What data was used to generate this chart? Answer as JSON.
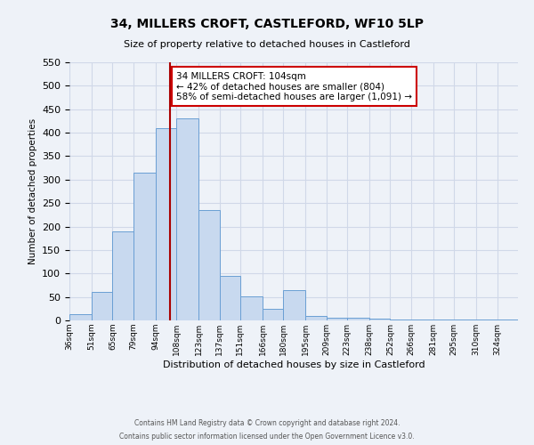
{
  "title": "34, MILLERS CROFT, CASTLEFORD, WF10 5LP",
  "subtitle": "Size of property relative to detached houses in Castleford",
  "xlabel": "Distribution of detached houses by size in Castleford",
  "ylabel": "Number of detached properties",
  "bin_labels": [
    "36sqm",
    "51sqm",
    "65sqm",
    "79sqm",
    "94sqm",
    "108sqm",
    "123sqm",
    "137sqm",
    "151sqm",
    "166sqm",
    "180sqm",
    "195sqm",
    "209sqm",
    "223sqm",
    "238sqm",
    "252sqm",
    "266sqm",
    "281sqm",
    "295sqm",
    "310sqm",
    "324sqm"
  ],
  "bin_edges": [
    36,
    51,
    65,
    79,
    94,
    108,
    123,
    137,
    151,
    166,
    180,
    195,
    209,
    223,
    238,
    252,
    266,
    281,
    295,
    310,
    324,
    338
  ],
  "counts": [
    13,
    60,
    190,
    315,
    410,
    430,
    235,
    95,
    52,
    25,
    65,
    10,
    5,
    5,
    3,
    2,
    2,
    2,
    2,
    1,
    2
  ],
  "vline_x": 104,
  "bar_facecolor": "#c8d9ef",
  "bar_edgecolor": "#6a9fd4",
  "vline_color": "#aa0000",
  "annotation_text": "34 MILLERS CROFT: 104sqm\n← 42% of detached houses are smaller (804)\n58% of semi-detached houses are larger (1,091) →",
  "annotation_box_edgecolor": "#cc0000",
  "annotation_box_facecolor": "#ffffff",
  "ylim": [
    0,
    550
  ],
  "grid_color": "#d0d8e8",
  "background_color": "#eef2f8",
  "footnote1": "Contains HM Land Registry data © Crown copyright and database right 2024.",
  "footnote2": "Contains public sector information licensed under the Open Government Licence v3.0."
}
